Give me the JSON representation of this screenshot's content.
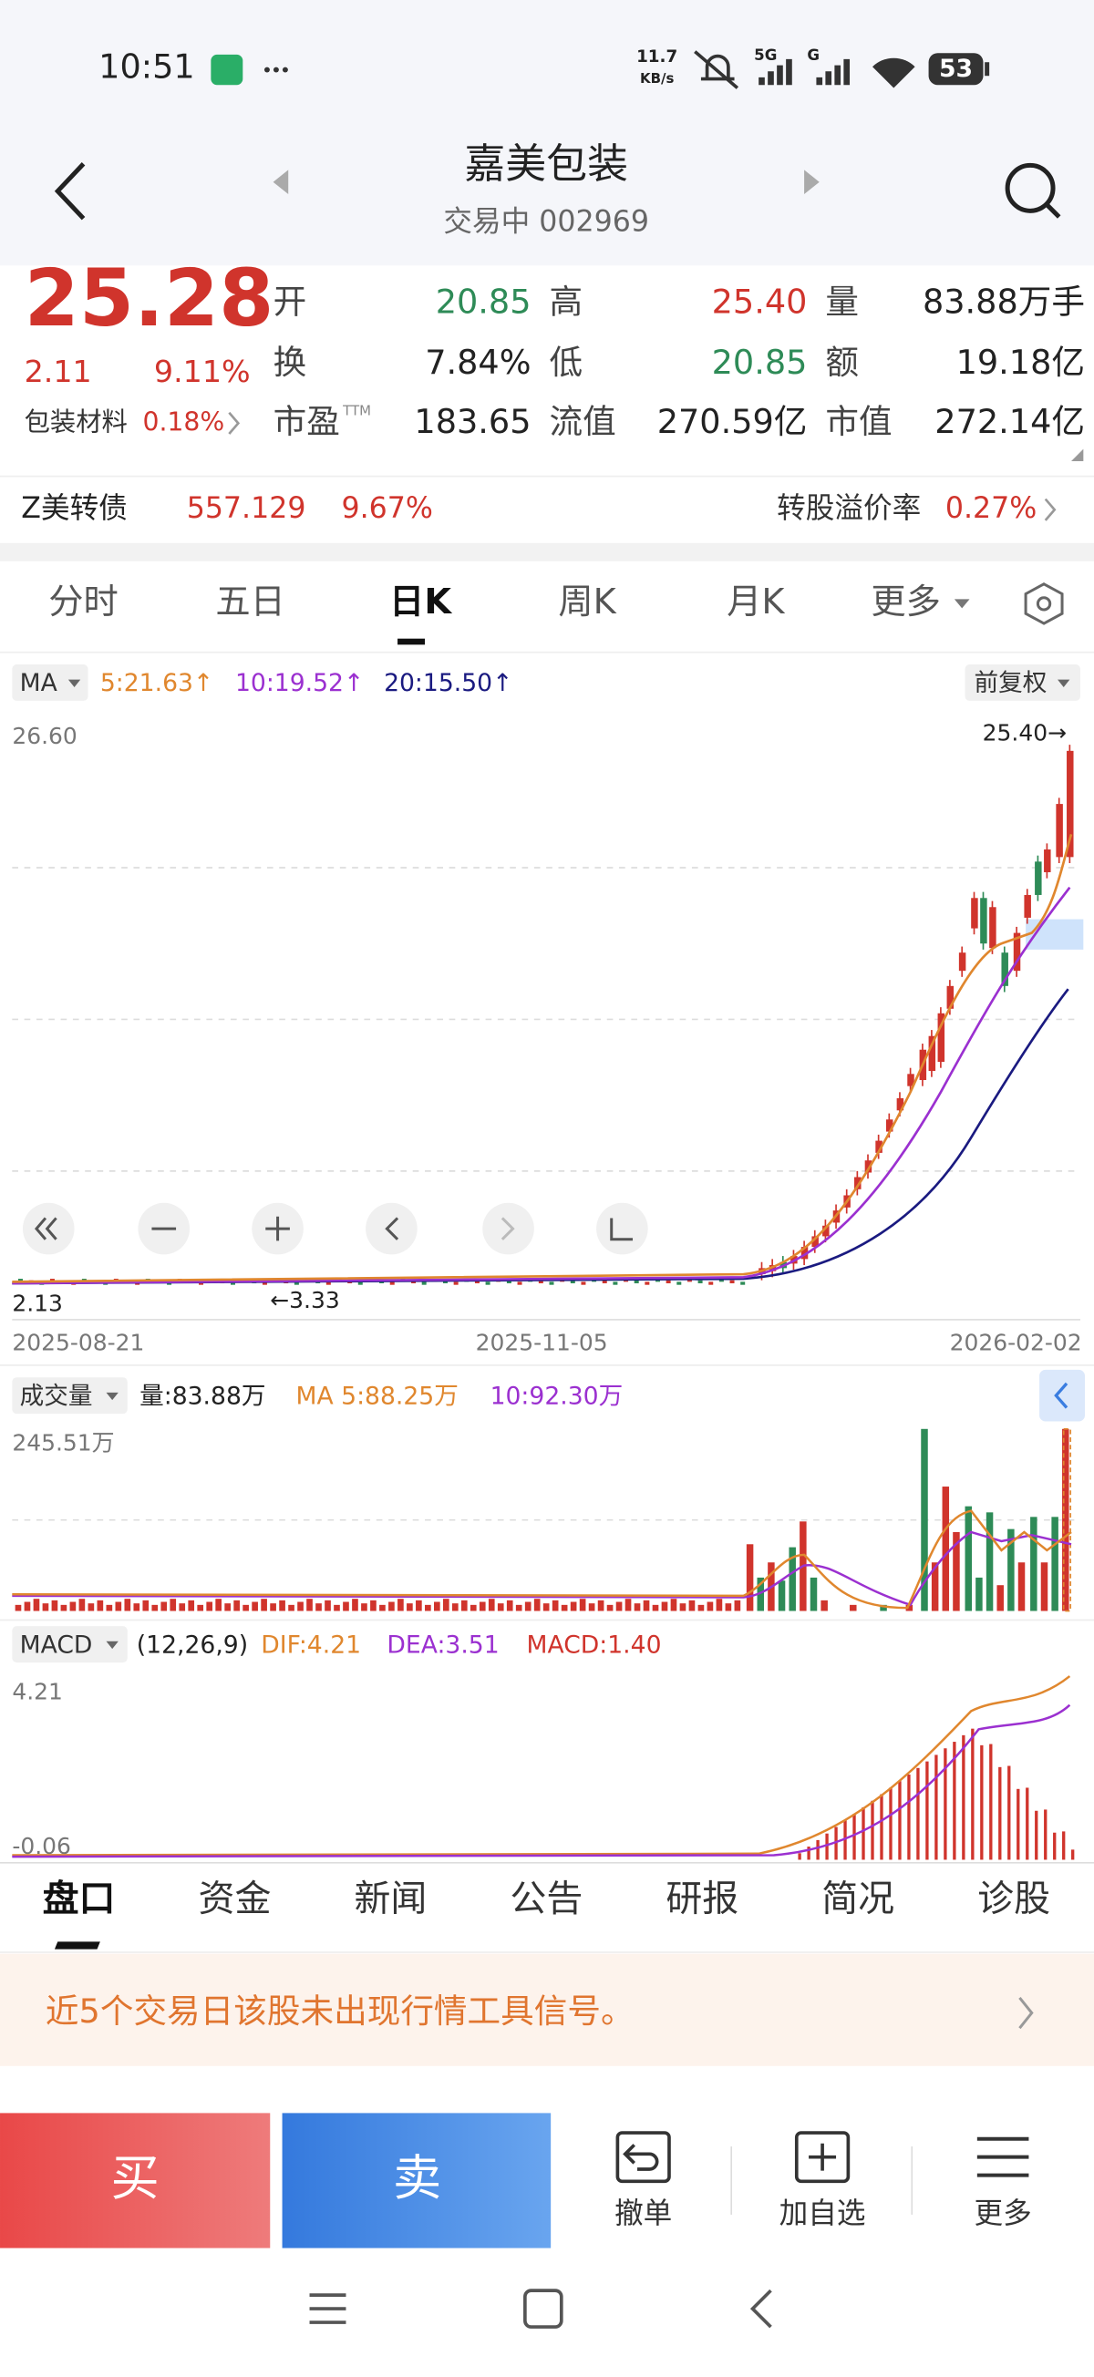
{
  "status_bar": {
    "time": "10:51",
    "net_speed": "11.7",
    "net_unit": "KB/s",
    "signal": "5G",
    "signal2": "G",
    "battery": "53"
  },
  "header": {
    "title": "嘉美包装",
    "subtitle": "交易中 002969"
  },
  "quote": {
    "price": "25.28",
    "change": "2.11",
    "change_pct": "9.11%",
    "sector": "包装材料",
    "sector_pct": "0.18%",
    "stats": [
      [
        {
          "label": "开",
          "value": "20.85"
        },
        {
          "label": "高",
          "value": "25.40"
        },
        {
          "label": "量",
          "value": "83.88万手"
        }
      ],
      [
        {
          "label": "换",
          "value": "7.84%"
        },
        {
          "label": "低",
          "value": "20.85"
        },
        {
          "label": "额",
          "value": "19.18亿"
        }
      ],
      [
        {
          "label": "市盈",
          "sup": "TTM",
          "value": "183.65"
        },
        {
          "label": "流值",
          "value": "270.59亿"
        },
        {
          "label": "市值",
          "value": "272.14亿"
        }
      ]
    ]
  },
  "bond": {
    "name": "Z美转债",
    "price": "557.129",
    "pct": "9.67%",
    "premium_label": "转股溢价率",
    "premium": "0.27%"
  },
  "chart_tabs": [
    "分时",
    "五日",
    "日K",
    "周K",
    "月K",
    "更多"
  ],
  "kline": {
    "indicator": "MA",
    "ma5": "5:21.63↑",
    "ma10": "10:19.52↑",
    "ma20": "20:15.50↑",
    "adjust": "前复权",
    "top": "26.60",
    "high_mark": "25.40→",
    "bottom": "2.13",
    "low_mark": "←3.33",
    "dates": [
      "2025-08-21",
      "2025-11-05",
      "2026-02-02"
    ]
  },
  "volume": {
    "indicator": "成交量",
    "vol": "量:83.88万",
    "ma5": "MA 5:88.25万",
    "ma10": "10:92.30万",
    "top": "245.51万"
  },
  "macd": {
    "indicator": "MACD",
    "params": "(12,26,9)",
    "dif": "DIF:4.21",
    "dea": "DEA:3.51",
    "macd": "MACD:1.40",
    "top": "4.21",
    "bottom": "-0.06"
  },
  "bottom_tabs": [
    "盘口",
    "资金",
    "新闻",
    "公告",
    "研报",
    "简况",
    "诊股"
  ],
  "signal": "近5个交易日该股未出现行情工具信号。",
  "actions": {
    "buy": "买",
    "sell": "卖",
    "cancel": "撤单",
    "watch": "加自选",
    "more": "更多"
  }
}
